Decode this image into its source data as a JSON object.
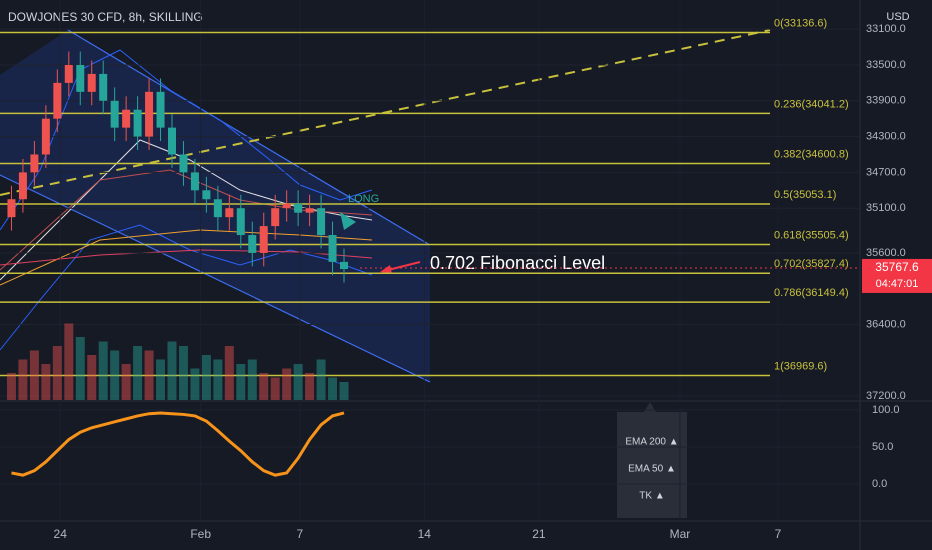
{
  "chart_data": {
    "type": "candlestick",
    "title": "DOWJONES 30 CFD, 8h, SKILLING",
    "currency": "USD",
    "x": [
      2,
      4,
      6,
      8,
      10,
      12,
      14,
      16,
      18,
      20,
      22,
      24,
      26,
      28,
      30,
      32,
      34,
      36,
      38,
      40,
      42,
      44,
      46,
      48,
      50,
      52,
      54,
      56,
      58,
      60
    ],
    "open": [
      35200,
      35000,
      34700,
      34500,
      34100,
      33700,
      33500,
      33800,
      33600,
      33900,
      34200,
      34000,
      34300,
      33800,
      34200,
      34500,
      34700,
      34900,
      35000,
      35200,
      35100,
      35400,
      35600,
      35300,
      35100,
      35050,
      35150,
      35100,
      35400,
      35700
    ],
    "close": [
      35000,
      34700,
      34500,
      34100,
      33700,
      33500,
      33800,
      33600,
      33900,
      34200,
      34000,
      34300,
      33800,
      34200,
      34500,
      34700,
      34900,
      35000,
      35200,
      35100,
      35400,
      35600,
      35300,
      35100,
      35050,
      35150,
      35100,
      35400,
      35700,
      35780
    ],
    "low": [
      34850,
      34550,
      34350,
      33950,
      33550,
      33350,
      33350,
      33450,
      33450,
      33750,
      33850,
      33850,
      33650,
      33650,
      34050,
      34350,
      34550,
      34750,
      34850,
      34950,
      34950,
      35250,
      35150,
      34950,
      34900,
      34900,
      34950,
      34950,
      35250,
      35550
    ],
    "high": [
      35350,
      35150,
      34850,
      34650,
      34250,
      33850,
      33950,
      33950,
      34050,
      34350,
      34350,
      34450,
      34450,
      34350,
      34650,
      34850,
      35050,
      35150,
      35350,
      35350,
      35550,
      35750,
      35750,
      35450,
      35250,
      35300,
      35300,
      35550,
      35850,
      35930
    ],
    "volume": [
      30,
      45,
      55,
      40,
      60,
      85,
      70,
      50,
      65,
      55,
      40,
      60,
      55,
      45,
      65,
      60,
      35,
      50,
      45,
      60,
      40,
      45,
      30,
      25,
      35,
      40,
      30,
      45,
      25,
      20
    ],
    "up_color": "#26a69a",
    "down_color": "#ef5350",
    "xlim": [
      0,
      150
    ],
    "xticks": [
      {
        "value": 10.5,
        "label": "24"
      },
      {
        "value": 35,
        "label": "Feb"
      },
      {
        "value": 52.3,
        "label": "7"
      },
      {
        "value": 74,
        "label": "14"
      },
      {
        "value": 94,
        "label": "21"
      },
      {
        "value": 118.6,
        "label": "Mar"
      },
      {
        "value": 135.7,
        "label": "7"
      }
    ],
    "ylim": [
      32774,
      37243
    ],
    "inverted": true,
    "yticks": [
      {
        "value": 33100,
        "label": "33100.0"
      },
      {
        "value": 33500,
        "label": "33500.0"
      },
      {
        "value": 33900,
        "label": "33900.0"
      },
      {
        "value": 34300,
        "label": "34300.0"
      },
      {
        "value": 34700,
        "label": "34700.0"
      },
      {
        "value": 35100,
        "label": "35100.0"
      },
      {
        "value": 35600,
        "label": "35600.0"
      },
      {
        "value": 36400,
        "label": "36400.0"
      },
      {
        "value": 37200,
        "label": "37200.0"
      }
    ],
    "fib_levels": [
      {
        "label": "0(33136.6)",
        "value": 33136.6
      },
      {
        "label": "0.236(34041.2)",
        "value": 34041.2
      },
      {
        "label": "0.382(34600.8)",
        "value": 34600.8
      },
      {
        "label": "0.5(35053.1)",
        "value": 35053.1
      },
      {
        "label": "0.618(35505.4)",
        "value": 35505.4
      },
      {
        "label": "0.702(35827.4)",
        "value": 35827.4
      },
      {
        "label": "0.786(36149.4)",
        "value": 36149.4
      },
      {
        "label": "1(36969.6)",
        "value": 36969.6
      }
    ],
    "fib_color": "#c8c13c",
    "current_price": {
      "value": 35767.6,
      "label": "35767.6",
      "countdown": "04:47:01"
    },
    "annotation": "0.702 Fibonacci Level",
    "signal_label": "LONG",
    "oscillator": {
      "values": [
        15,
        12,
        18,
        30,
        45,
        60,
        70,
        76,
        80,
        84,
        88,
        92,
        95,
        96,
        95,
        94,
        92,
        85,
        72,
        58,
        45,
        30,
        18,
        12,
        15,
        35,
        60,
        80,
        92,
        96
      ],
      "color": "#f7931a",
      "ylim": [
        -48.6,
        110.8
      ],
      "yticks": [
        {
          "value": 100,
          "label": "100.0"
        },
        {
          "value": 50,
          "label": "50.0"
        },
        {
          "value": 0,
          "label": "0.0"
        }
      ]
    },
    "indicators": [
      "EMA 200 ▲",
      "EMA 50 ▲",
      "TK ▲"
    ]
  }
}
